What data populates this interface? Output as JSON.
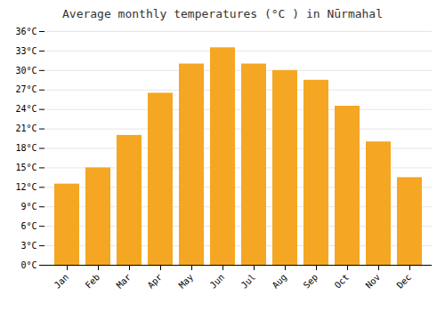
{
  "chart_data": {
    "type": "bar",
    "title": "Average monthly temperatures (°C ) in Nūrmahal",
    "categories": [
      "Jan",
      "Feb",
      "Mar",
      "Apr",
      "May",
      "Jun",
      "Jul",
      "Aug",
      "Sep",
      "Oct",
      "Nov",
      "Dec"
    ],
    "values": [
      12.5,
      15.0,
      20.0,
      26.5,
      31.0,
      33.5,
      31.0,
      30.0,
      28.5,
      24.5,
      19.0,
      13.5
    ],
    "color": "#F5A623",
    "ylim": [
      0,
      36
    ],
    "yticks": [
      {
        "value": 0,
        "label": "0°C"
      },
      {
        "value": 3,
        "label": "3°C"
      },
      {
        "value": 6,
        "label": "6°C"
      },
      {
        "value": 9,
        "label": "9°C"
      },
      {
        "value": 12,
        "label": "12°C"
      },
      {
        "value": 15,
        "label": "15°C"
      },
      {
        "value": 18,
        "label": "18°C"
      },
      {
        "value": 21,
        "label": "21°C"
      },
      {
        "value": 24,
        "label": "24°C"
      },
      {
        "value": 27,
        "label": "27°C"
      },
      {
        "value": 30,
        "label": "30°C"
      },
      {
        "value": 33,
        "label": "33°C"
      },
      {
        "value": 36,
        "label": "36°C"
      }
    ],
    "grid": true
  }
}
